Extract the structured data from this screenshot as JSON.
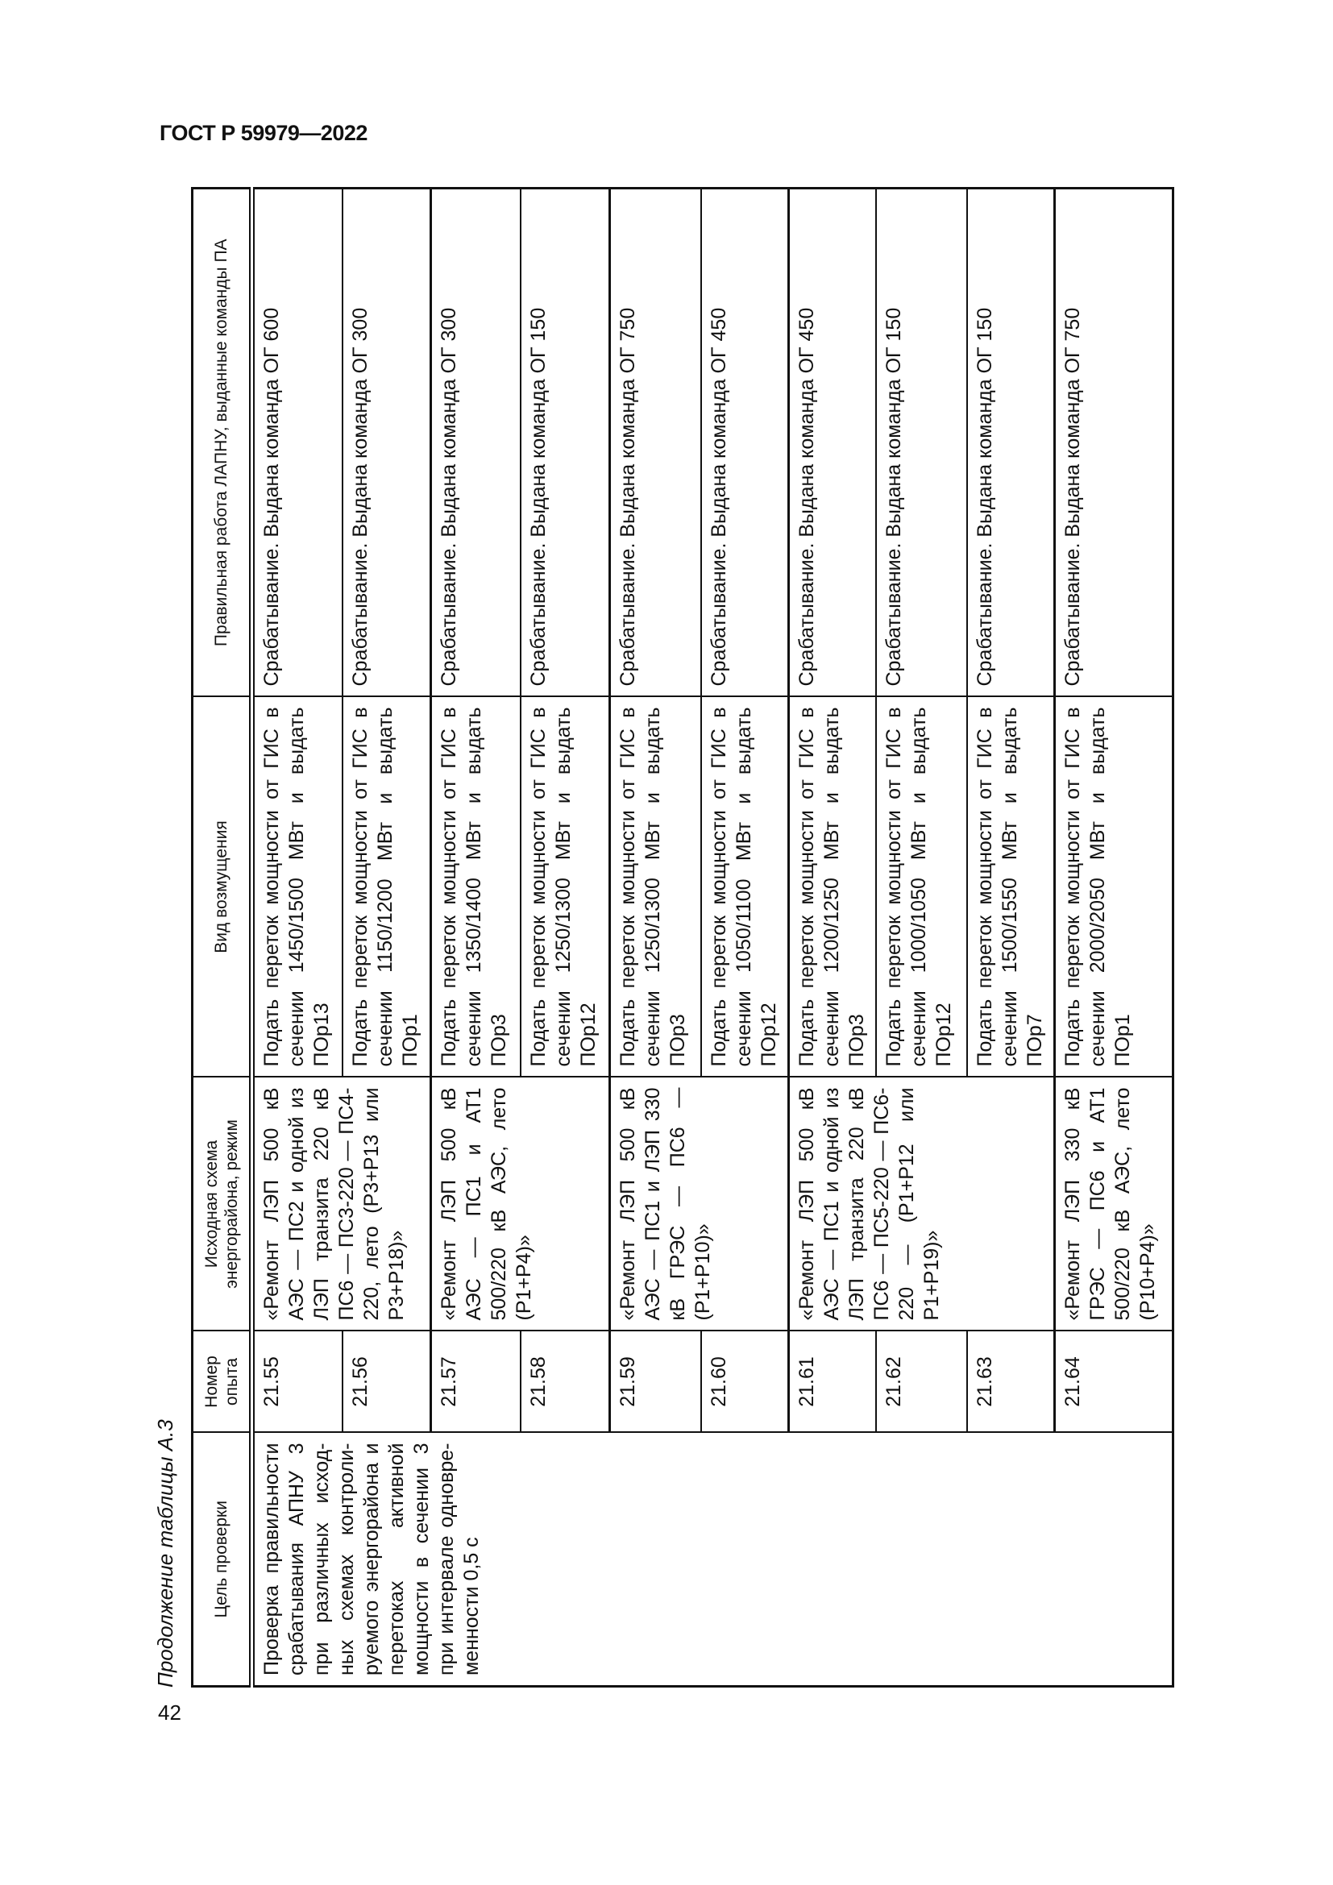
{
  "document": {
    "header": "ГОСТ Р 59979—2022",
    "page_number": "42",
    "caption": "Продолжение таблицы А.3"
  },
  "table": {
    "columns": [
      "Цель проверки",
      "Номер опыта",
      "Исходная схема энергорайона, режим",
      "Вид возмущения",
      "Правильная работа ЛАПНУ, выданные команды ПА"
    ],
    "purpose": "Проверка правильности срабатывания АПНУ 3 при различных исход­ных схемах контроли­руемого энергорайона и перетоках активной мощности в сечении 3 при интервале одновре­менности 0,5 с",
    "schemes": [
      "«Ремонт ЛЭП 500 кВ АЭС — ПС2 и одной из ЛЭП транзита 220 кВ ПС6 — ПС3-220 — ПС4-220, лето (Р3+Р13 или Р3+Р18)»",
      "«Ремонт ЛЭП 500 кВ АЭС — ПС1 и АТ1 500/220 кВ АЭС, лето (Р1+Р4)»",
      "«Ремонт ЛЭП 500 кВ АЭС — ПС1 и ЛЭП 330 кВ ГРЭС — ПС6 — (Р1+Р10)»",
      "«Ремонт ЛЭП 500 кВ АЭС — ПС1 и одной из ЛЭП транзита 220 кВ ПС6 — ПС5-220 — ПС6-220 — (Р1+Р12 или Р1+Р19)»",
      "«Ремонт ЛЭП 330 кВ ГРЭС — ПС6 и АТ1 500/220 кВ АЭС, лето (Р10+Р4)»"
    ],
    "rows": [
      {
        "number": "21.55",
        "disturbance": "Подать переток мощности от ГИС в сечении 1450/1500 МВт и выдать ПОр13",
        "result": "Срабатывание. Выдана команда ОГ 600"
      },
      {
        "number": "21.56",
        "disturbance": "Подать переток мощности от ГИС в сечении 1150/1200 МВт и выдать ПОр1",
        "result": "Срабатывание. Выдана команда ОГ 300"
      },
      {
        "number": "21.57",
        "disturbance": "Подать переток мощности от ГИС в сечении 1350/1400 МВт и выдать ПОр3",
        "result": "Срабатывание. Выдана команда ОГ 300"
      },
      {
        "number": "21.58",
        "disturbance": "Подать переток мощности от ГИС в сечении 1250/1300 МВт и выдать ПОр12",
        "result": "Срабатывание. Выдана команда ОГ 150"
      },
      {
        "number": "21.59",
        "disturbance": "Подать переток мощности от ГИС в сечении 1250/1300 МВт и выдать ПОр3",
        "result": "Срабатывание. Выдана команда ОГ 750"
      },
      {
        "number": "21.60",
        "disturbance": "Подать переток мощности от ГИС в сечении 1050/1100 МВт и выдать ПОр12",
        "result": "Срабатывание. Выдана команда ОГ 450"
      },
      {
        "number": "21.61",
        "disturbance": "Подать переток мощности от ГИС в сечении 1200/1250 МВт и выдать ПОр3",
        "result": "Срабатывание. Выдана команда ОГ 450"
      },
      {
        "number": "21.62",
        "disturbance": "Подать переток мощности от ГИС в сечении 1000/1050 МВт и выдать ПОр12",
        "result": "Срабатывание. Выдана команда ОГ 150"
      },
      {
        "number": "21.63",
        "disturbance": "Подать переток мощности от ГИС в сечении 1500/1550 МВт и выдать ПОр7",
        "result": "Срабатывание. Выдана команда ОГ 150"
      },
      {
        "number": "21.64",
        "disturbance": "Подать переток мощности от ГИС в сечении 2000/2050 МВт и выдать ПОр1",
        "result": "Срабатывание. Выдана команда ОГ 750"
      }
    ]
  }
}
